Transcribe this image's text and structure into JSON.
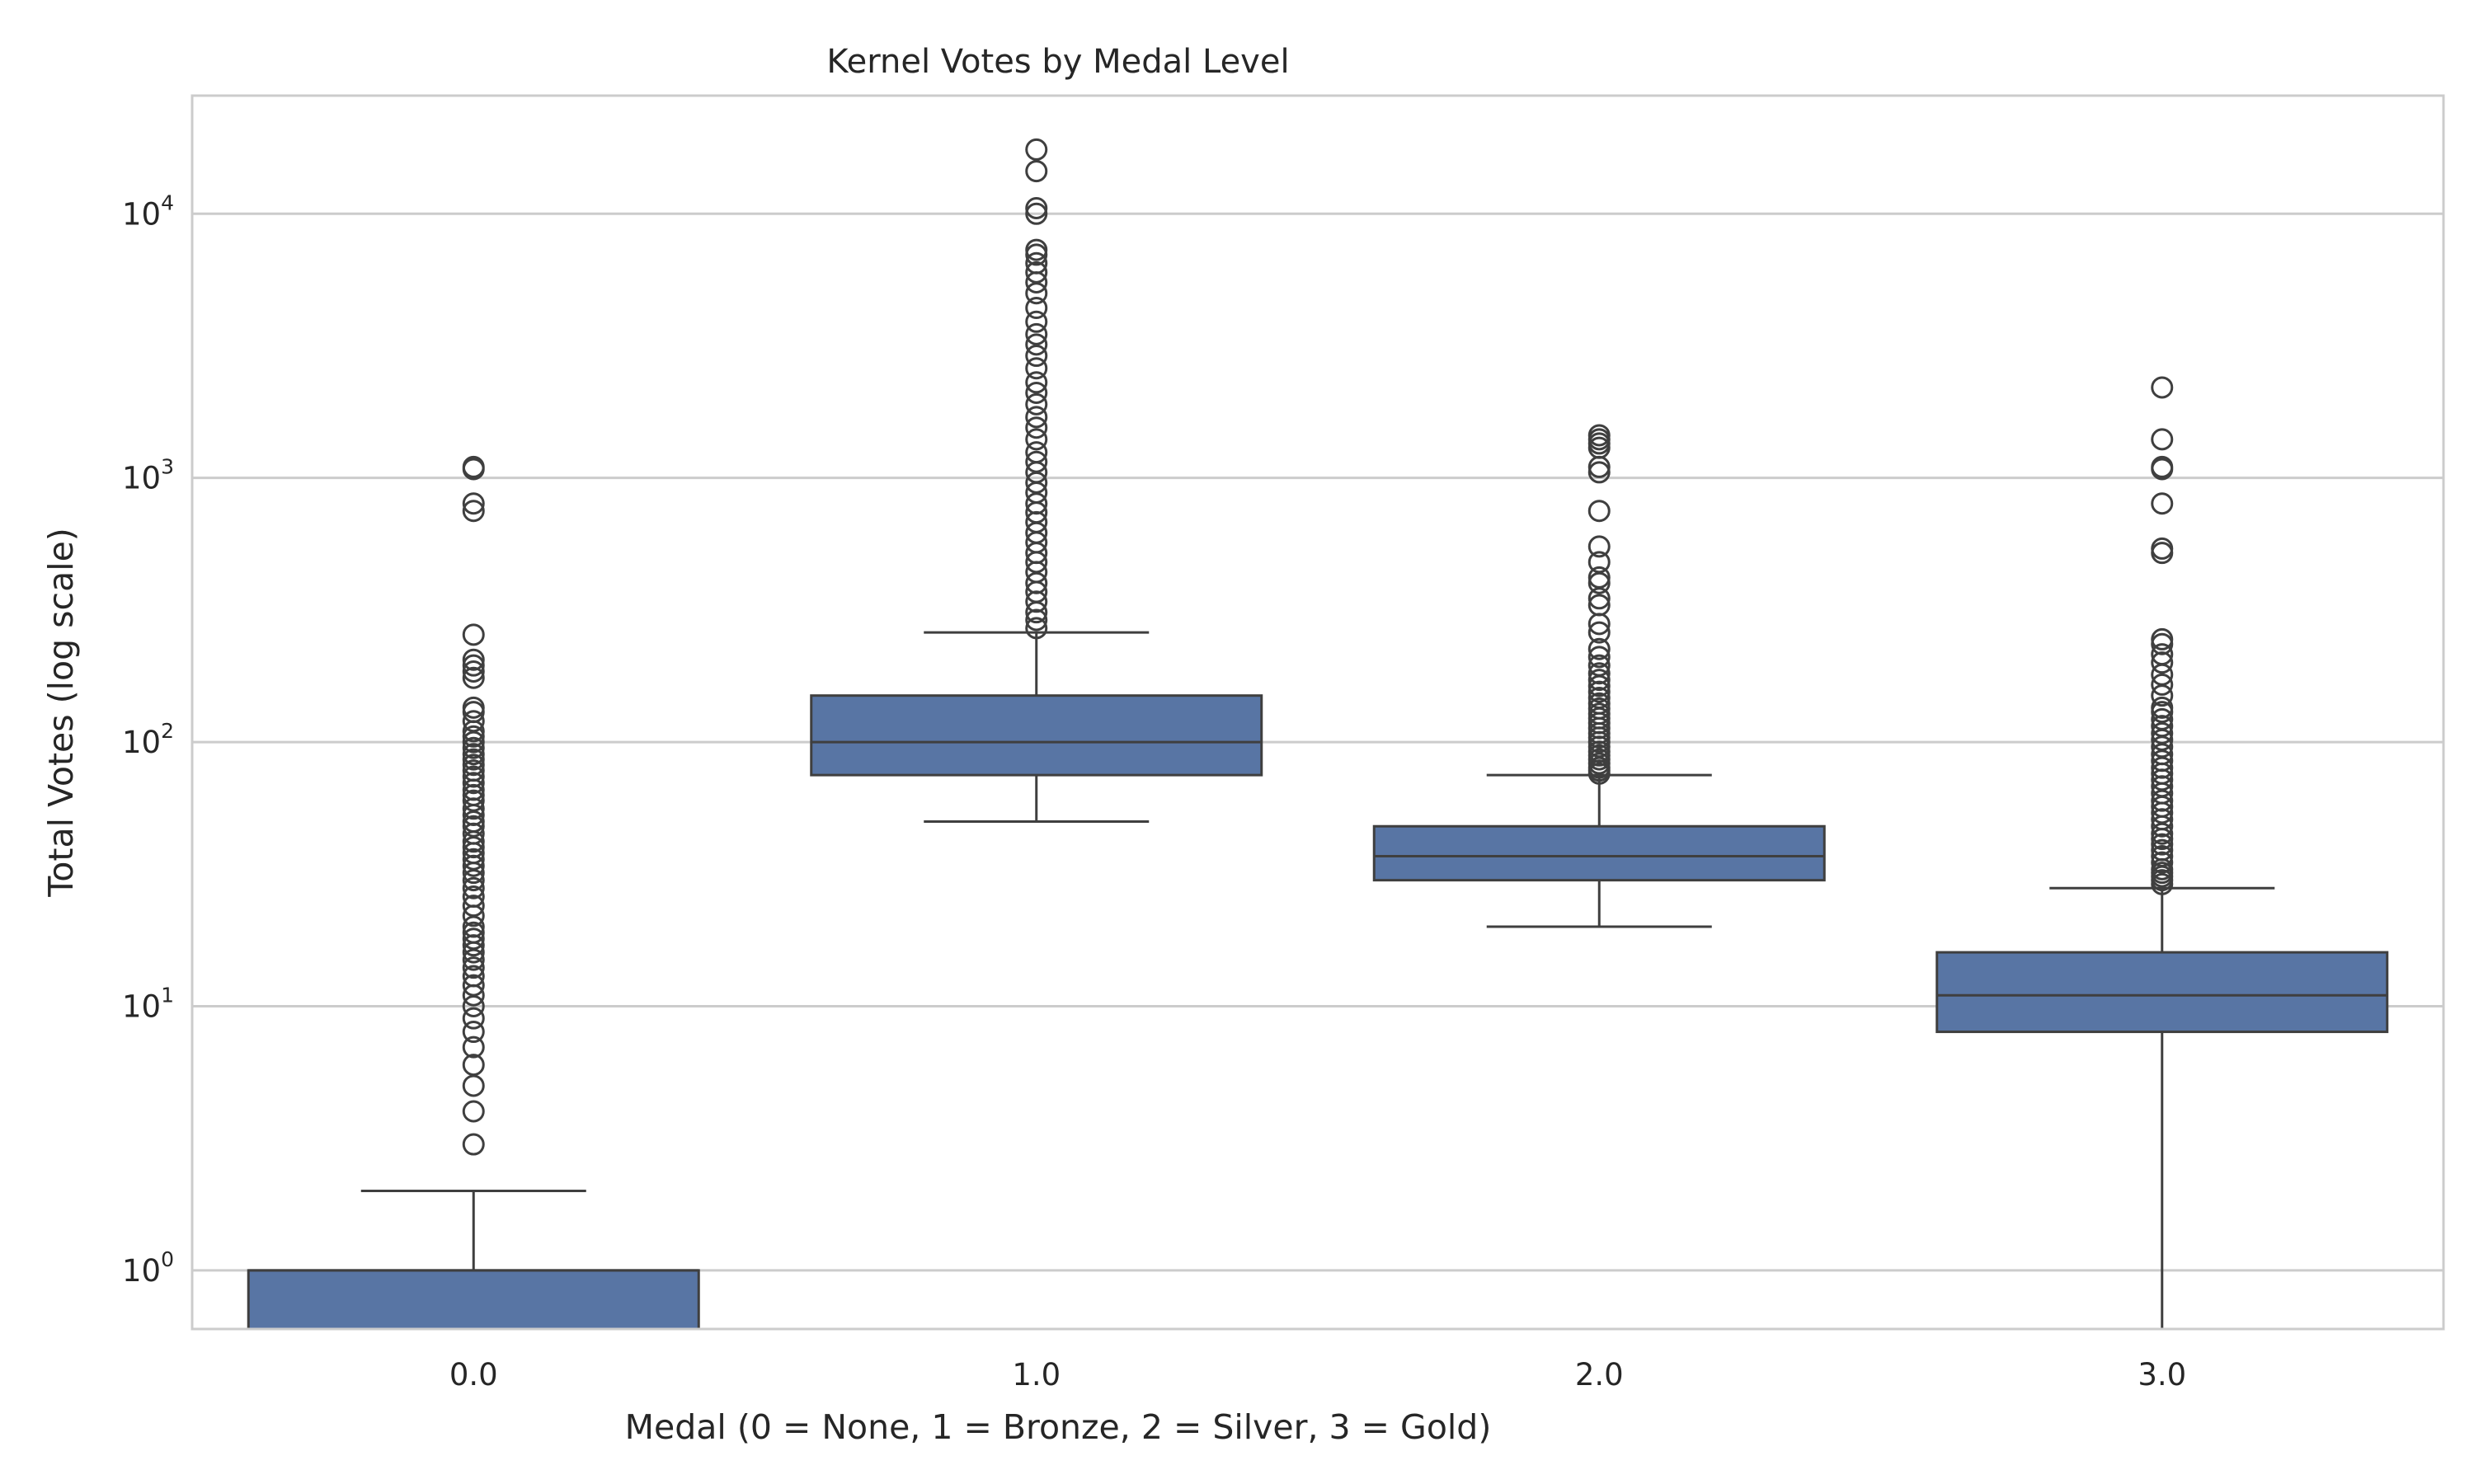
{
  "chart_data": {
    "type": "box",
    "title": "Kernel Votes by Medal Level",
    "xlabel": "Medal (0 = None, 1 = Bronze, 2 = Silver, 3 = Gold)",
    "ylabel": "Total Votes (log scale)",
    "yscale": "log",
    "ylim": [
      0.6,
      28000
    ],
    "yticks": [
      1,
      10,
      100,
      1000,
      10000
    ],
    "ytick_labels": [
      {
        "base": "10",
        "exp": "0"
      },
      {
        "base": "10",
        "exp": "1"
      },
      {
        "base": "10",
        "exp": "2"
      },
      {
        "base": "10",
        "exp": "3"
      },
      {
        "base": "10",
        "exp": "4"
      }
    ],
    "grid": true,
    "box_color": "#5875a4",
    "line_color": "#3f3f3f",
    "categories": [
      "0.0",
      "1.0",
      "2.0",
      "3.0"
    ],
    "boxes": [
      {
        "category": "0.0",
        "whisker_low": 0.6,
        "q1": 0.6,
        "median": 1,
        "q3": 1,
        "whisker_high": 2,
        "outliers": [
          3,
          4,
          5,
          6,
          7,
          8,
          9,
          10,
          11,
          12,
          13,
          14,
          15,
          16,
          17,
          18,
          19,
          20,
          22,
          24,
          26,
          28,
          30,
          32,
          34,
          36,
          38,
          40,
          42,
          45,
          48,
          50,
          53,
          56,
          60,
          63,
          66,
          70,
          74,
          78,
          82,
          86,
          90,
          95,
          100,
          105,
          110,
          120,
          130,
          135,
          175,
          185,
          195,
          205,
          255,
          750,
          800,
          1080,
          1100
        ]
      },
      {
        "category": "1.0",
        "whisker_low": 50,
        "q1": 75,
        "median": 100,
        "q3": 150,
        "whisker_high": 260,
        "outliers": [
          270,
          290,
          310,
          340,
          370,
          400,
          440,
          480,
          520,
          570,
          620,
          680,
          740,
          800,
          880,
          960,
          1050,
          1150,
          1250,
          1400,
          1550,
          1700,
          1900,
          2100,
          2300,
          2600,
          2900,
          3200,
          3500,
          3900,
          4400,
          5000,
          5500,
          6000,
          6500,
          7000,
          7300,
          10000,
          10500,
          14500,
          17500
        ]
      },
      {
        "category": "2.0",
        "whisker_low": 20,
        "q1": 30,
        "median": 37,
        "q3": 48,
        "whisker_high": 75,
        "outliers": [
          76,
          78,
          80,
          83,
          86,
          89,
          92,
          96,
          100,
          104,
          108,
          113,
          118,
          123,
          128,
          134,
          140,
          147,
          155,
          163,
          172,
          182,
          195,
          210,
          225,
          260,
          280,
          330,
          350,
          400,
          420,
          480,
          550,
          750,
          1050,
          1100,
          1300,
          1350,
          1400,
          1450
        ]
      },
      {
        "category": "3.0",
        "whisker_low": 0.6,
        "q1": 8,
        "median": 11,
        "q3": 16,
        "whisker_high": 28,
        "outliers": [
          29,
          30,
          31,
          32,
          33,
          35,
          37,
          39,
          41,
          43,
          45,
          48,
          51,
          54,
          57,
          60,
          64,
          68,
          72,
          76,
          80,
          85,
          90,
          96,
          102,
          108,
          115,
          122,
          130,
          135,
          150,
          165,
          180,
          200,
          215,
          235,
          245,
          520,
          540,
          800,
          1080,
          1100,
          1400,
          2200
        ]
      }
    ]
  }
}
